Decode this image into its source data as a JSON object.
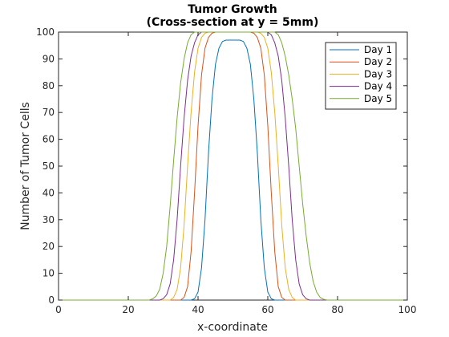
{
  "chart_data": {
    "type": "line",
    "title": "Tumor Growth",
    "subtitle": "(Cross-section at y = 5mm)",
    "xlabel": "x-coordinate",
    "ylabel": "Number of Tumor Cells",
    "xlim": [
      0,
      100
    ],
    "ylim": [
      0,
      100
    ],
    "xticks": [
      "0",
      "20",
      "40",
      "60",
      "80",
      "100"
    ],
    "yticks": [
      "0",
      "10",
      "20",
      "30",
      "40",
      "50",
      "60",
      "70",
      "80",
      "90",
      "100"
    ],
    "grid": false,
    "legend_position": "top-right",
    "series": [
      {
        "name": "Day 1",
        "color": "#0072BD",
        "x": [
          0,
          38,
          39,
          40,
          41,
          42,
          43,
          44,
          45,
          46,
          47,
          48,
          49,
          50,
          51,
          52,
          53,
          54,
          55,
          56,
          57,
          58,
          59,
          60,
          61,
          62,
          100
        ],
        "y": [
          0,
          0,
          0.5,
          3,
          12,
          30,
          55,
          75,
          88,
          94,
          96.5,
          97,
          97,
          97,
          97,
          97,
          96.5,
          94,
          88,
          75,
          55,
          30,
          12,
          3,
          0.5,
          0,
          0
        ]
      },
      {
        "name": "Day 2",
        "color": "#D95319",
        "x": [
          0,
          35,
          36,
          37,
          38,
          39,
          40,
          41,
          42,
          43,
          44,
          45,
          55,
          56,
          57,
          58,
          59,
          60,
          61,
          62,
          63,
          64,
          65,
          100
        ],
        "y": [
          0,
          0,
          1,
          5,
          18,
          40,
          65,
          84,
          94,
          98,
          99.6,
          100,
          100,
          99.6,
          98,
          94,
          84,
          65,
          40,
          18,
          5,
          1,
          0,
          0
        ]
      },
      {
        "name": "Day 3",
        "color": "#EDB120",
        "x": [
          0,
          32,
          33,
          34,
          35,
          36,
          37,
          38,
          39,
          40,
          41,
          42,
          43,
          57,
          58,
          59,
          60,
          61,
          62,
          63,
          64,
          65,
          66,
          67,
          68,
          100
        ],
        "y": [
          0,
          0,
          1,
          4,
          12,
          28,
          50,
          70,
          85,
          94,
          98,
          99.6,
          100,
          100,
          99.6,
          98,
          94,
          85,
          70,
          50,
          28,
          12,
          4,
          1,
          0,
          0
        ]
      },
      {
        "name": "Day 4",
        "color": "#7E2F8E",
        "x": [
          0,
          29,
          30,
          31,
          32,
          33,
          34,
          35,
          36,
          37,
          38,
          39,
          40,
          41,
          60,
          61,
          62,
          63,
          64,
          65,
          66,
          67,
          68,
          69,
          70,
          71,
          72,
          100
        ],
        "y": [
          0,
          0,
          0.5,
          2,
          6,
          15,
          30,
          50,
          68,
          82,
          91,
          96,
          99,
          100,
          100,
          99,
          96,
          91,
          82,
          68,
          50,
          30,
          15,
          6,
          2,
          0.5,
          0,
          0
        ]
      },
      {
        "name": "Day 5",
        "color": "#77AC30",
        "x": [
          0,
          26,
          27,
          28,
          29,
          30,
          31,
          32,
          33,
          34,
          35,
          36,
          37,
          38,
          39,
          62,
          63,
          64,
          65,
          66,
          67,
          68,
          69,
          70,
          71,
          72,
          73,
          74,
          75,
          76,
          77,
          78,
          100
        ],
        "y": [
          0,
          0,
          0.5,
          1.5,
          4,
          10,
          20,
          35,
          52,
          68,
          81,
          90,
          96,
          99,
          100,
          100,
          99,
          96,
          91,
          84,
          75,
          64,
          50,
          36,
          24,
          14,
          7,
          3,
          1,
          0.3,
          0,
          0,
          0
        ]
      }
    ]
  }
}
